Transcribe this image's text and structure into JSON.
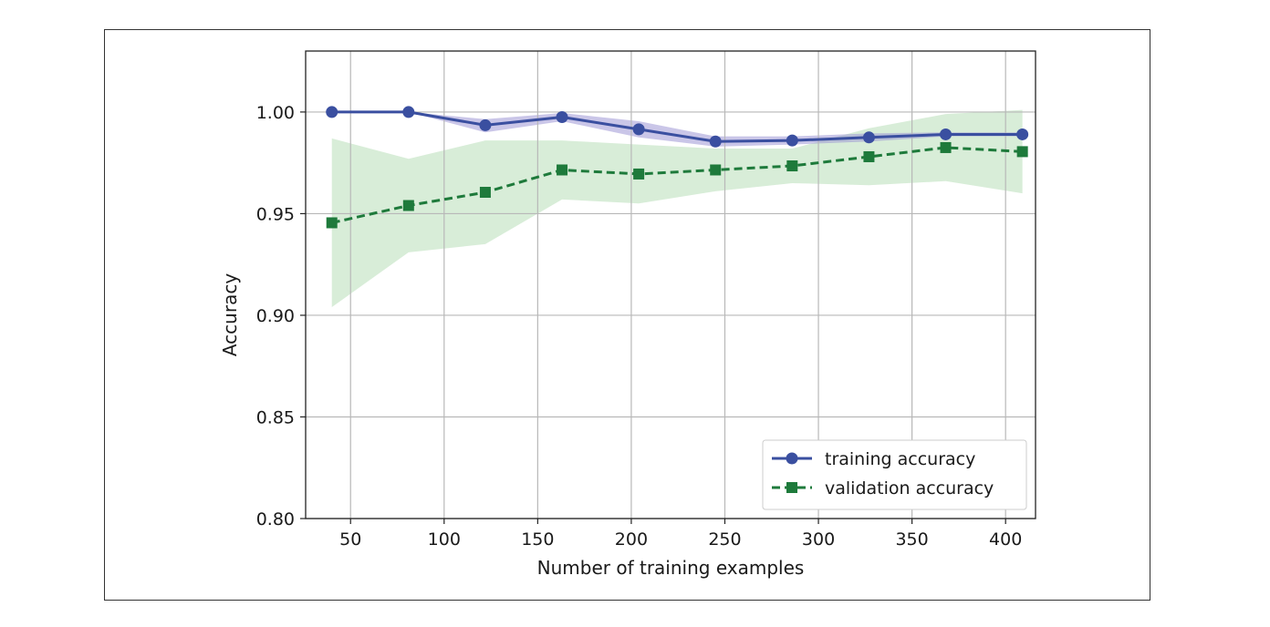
{
  "colors": {
    "training": "#3a4fa0",
    "training_band": "#9f98d6",
    "validation": "#1e7a3b",
    "validation_band": "#a8d8a8",
    "grid": "#b8b8b8",
    "axis": "#222222"
  },
  "chart_data": {
    "type": "line",
    "title": "",
    "xlabel": "Number of training examples",
    "ylabel": "Accuracy",
    "xlim": [
      26,
      416
    ],
    "ylim": [
      0.8,
      1.03
    ],
    "xticks": [
      50,
      100,
      150,
      200,
      250,
      300,
      350,
      400
    ],
    "xtick_labels": [
      "50",
      "100",
      "150",
      "200",
      "250",
      "300",
      "350",
      "400"
    ],
    "yticks": [
      0.8,
      0.85,
      0.9,
      0.95,
      1.0
    ],
    "ytick_labels": [
      "0.80",
      "0.85",
      "0.90",
      "0.95",
      "1.00"
    ],
    "grid": true,
    "legend_position": "lower-right",
    "x": [
      40,
      81,
      122,
      163,
      204,
      245,
      286,
      327,
      368,
      409
    ],
    "series": [
      {
        "name": "training accuracy",
        "marker": "circle",
        "line_style": "solid",
        "color": "#3a4fa0",
        "values": [
          1.0,
          1.0,
          0.9935,
          0.9975,
          0.9915,
          0.9855,
          0.986,
          0.9875,
          0.989,
          0.989
        ],
        "band_upper": [
          1.0,
          1.0,
          0.9965,
          0.9995,
          0.9955,
          0.988,
          0.988,
          0.9895,
          0.99,
          0.99
        ],
        "band_lower": [
          1.0,
          1.0,
          0.99,
          0.9955,
          0.9875,
          0.983,
          0.984,
          0.9855,
          0.988,
          0.988
        ]
      },
      {
        "name": "validation accuracy",
        "marker": "square",
        "line_style": "dashed",
        "color": "#1e7a3b",
        "values": [
          0.9455,
          0.954,
          0.9605,
          0.9715,
          0.9695,
          0.9715,
          0.9735,
          0.978,
          0.9825,
          0.9805
        ],
        "band_upper": [
          0.987,
          0.977,
          0.986,
          0.986,
          0.984,
          0.982,
          0.982,
          0.992,
          0.999,
          1.001
        ],
        "band_lower": [
          0.904,
          0.931,
          0.935,
          0.957,
          0.955,
          0.961,
          0.965,
          0.964,
          0.966,
          0.96
        ]
      }
    ]
  }
}
